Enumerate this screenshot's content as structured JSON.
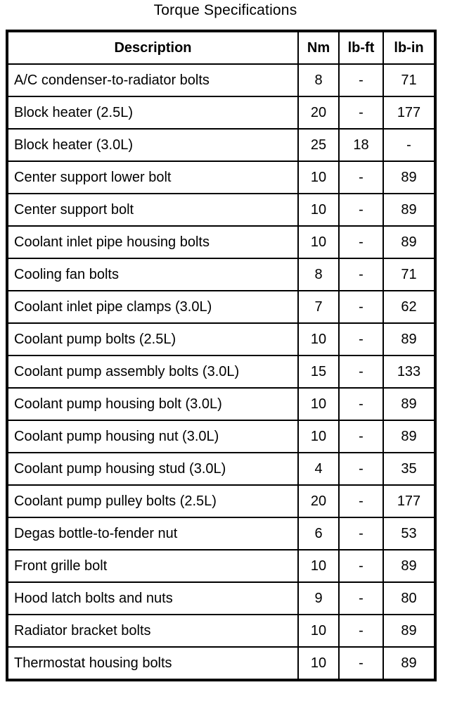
{
  "page": {
    "title": "Torque Specifications"
  },
  "table": {
    "columns": [
      "Description",
      "Nm",
      "lb-ft",
      "lb-in"
    ],
    "rows": [
      [
        "A/C condenser-to-radiator bolts",
        "8",
        "-",
        "71"
      ],
      [
        "Block heater (2.5L)",
        "20",
        "-",
        "177"
      ],
      [
        "Block heater (3.0L)",
        "25",
        "18",
        "-"
      ],
      [
        "Center support lower bolt",
        "10",
        "-",
        "89"
      ],
      [
        "Center support bolt",
        "10",
        "-",
        "89"
      ],
      [
        "Coolant inlet pipe housing bolts",
        "10",
        "-",
        "89"
      ],
      [
        "Cooling fan bolts",
        "8",
        "-",
        "71"
      ],
      [
        "Coolant inlet pipe clamps (3.0L)",
        "7",
        "-",
        "62"
      ],
      [
        "Coolant pump bolts (2.5L)",
        "10",
        "-",
        "89"
      ],
      [
        "Coolant pump assembly bolts (3.0L)",
        "15",
        "-",
        "133"
      ],
      [
        "Coolant pump housing bolt (3.0L)",
        "10",
        "-",
        "89"
      ],
      [
        "Coolant pump housing nut (3.0L)",
        "10",
        "-",
        "89"
      ],
      [
        "Coolant pump housing stud (3.0L)",
        "4",
        "-",
        "35"
      ],
      [
        "Coolant pump pulley bolts (2.5L)",
        "20",
        "-",
        "177"
      ],
      [
        "Degas bottle-to-fender nut",
        "6",
        "-",
        "53"
      ],
      [
        "Front grille bolt",
        "10",
        "-",
        "89"
      ],
      [
        "Hood latch bolts and nuts",
        "9",
        "-",
        "80"
      ],
      [
        "Radiator bracket bolts",
        "10",
        "-",
        "89"
      ],
      [
        "Thermostat housing bolts",
        "10",
        "-",
        "89"
      ]
    ]
  },
  "colors": {
    "text": "#000000",
    "background": "#ffffff",
    "border": "#000000"
  }
}
